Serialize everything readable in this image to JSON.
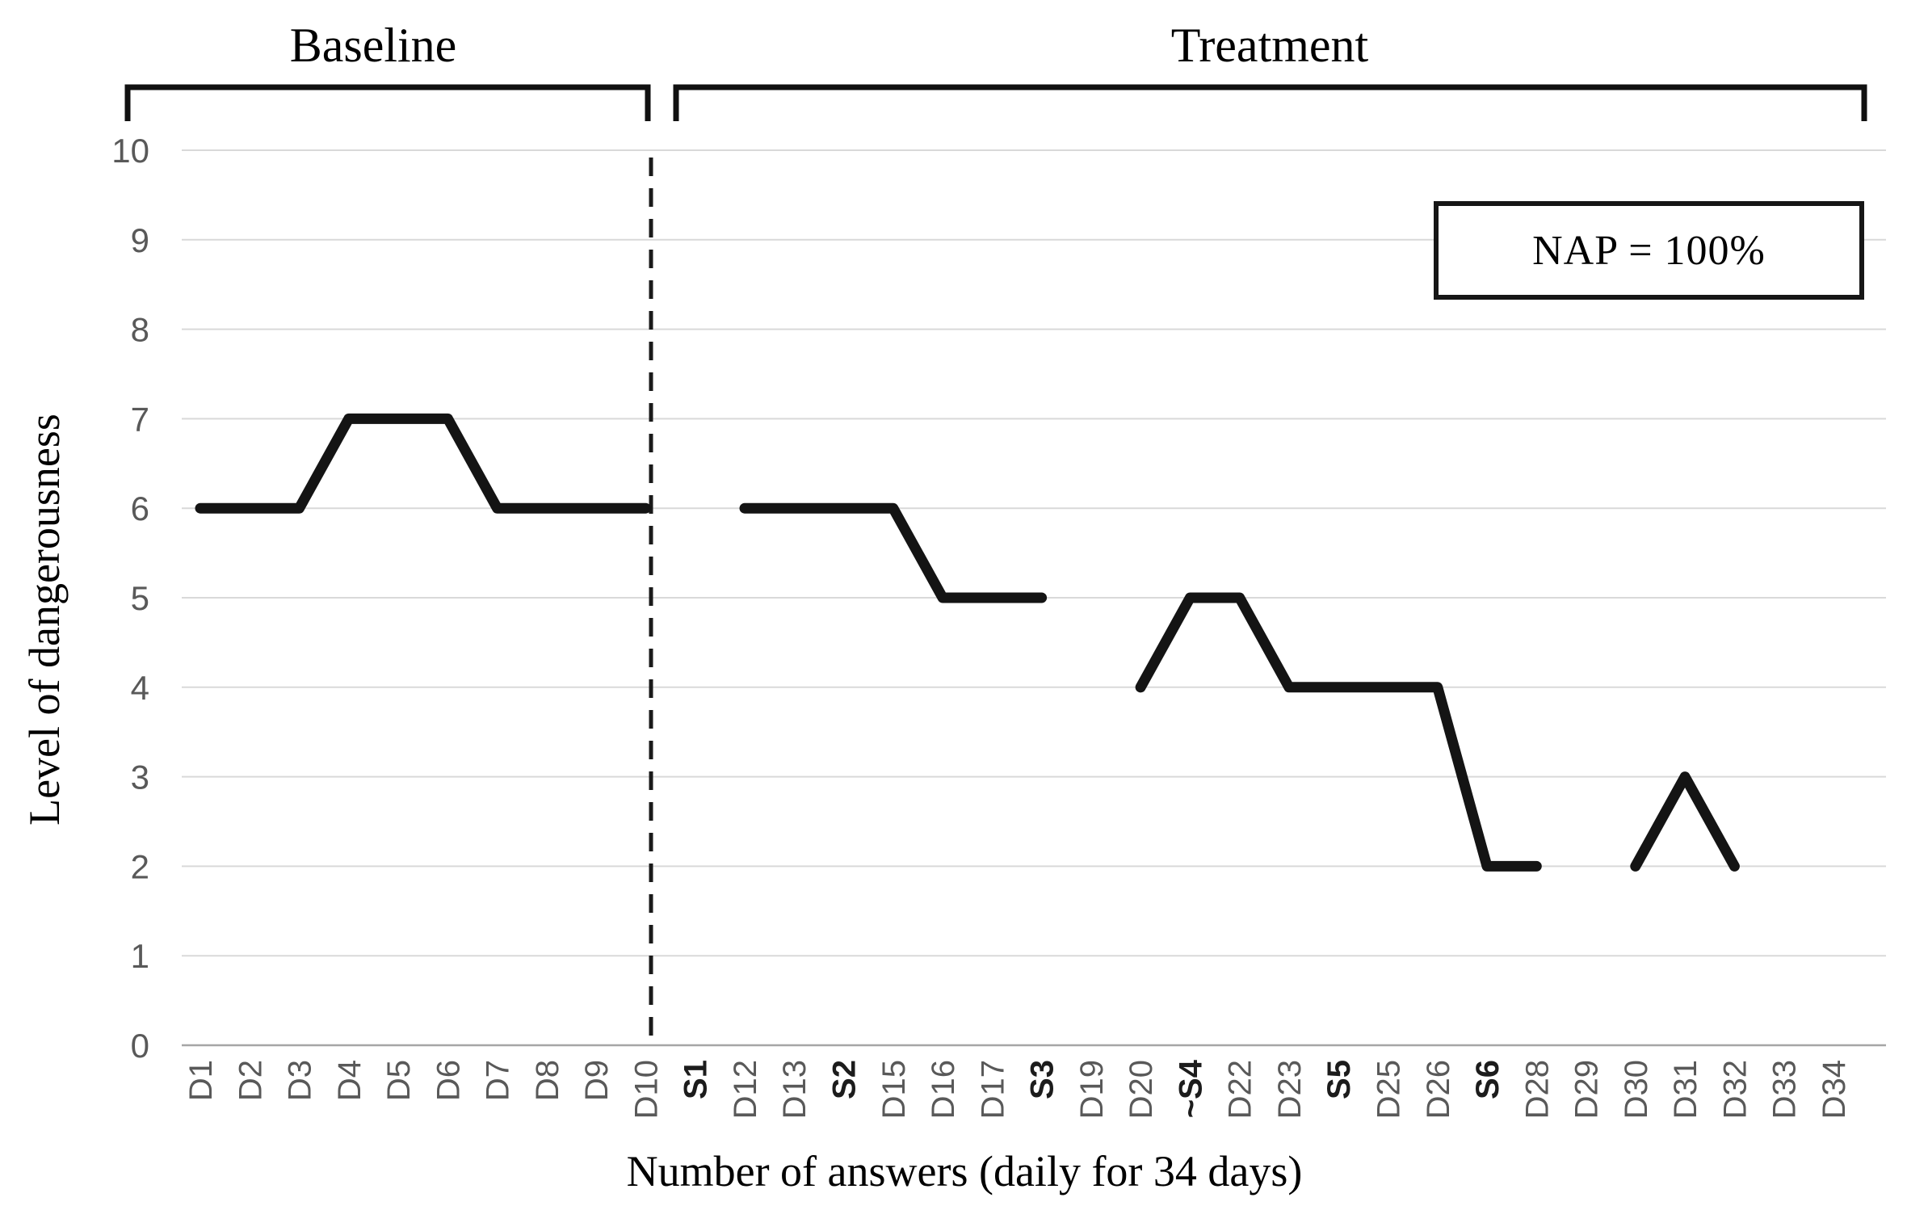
{
  "chart_data": {
    "type": "line",
    "title": "",
    "xlabel": "Number of answers (daily for 34 days)",
    "ylabel": "Level of dangerousness",
    "ylim": [
      0,
      10
    ],
    "ytick_step": 1,
    "grid": true,
    "legend": "none",
    "categories": [
      "D1",
      "D2",
      "D3",
      "D4",
      "D5",
      "D6",
      "D7",
      "D8",
      "D9",
      "D10",
      "S1",
      "D12",
      "D13",
      "S2",
      "D15",
      "D16",
      "D17",
      "S3",
      "D19",
      "D20",
      "~S4",
      "D22",
      "D23",
      "S5",
      "D25",
      "D26",
      "S6",
      "D28",
      "D29",
      "D30",
      "D31",
      "D32",
      "D33",
      "D34"
    ],
    "session_labels": [
      "S1",
      "S2",
      "S3",
      "~S4",
      "S5",
      "S6"
    ],
    "values": [
      6,
      6,
      6,
      7,
      7,
      7,
      6,
      6,
      6,
      6,
      null,
      6,
      6,
      6,
      6,
      5,
      5,
      5,
      null,
      4,
      5,
      5,
      4,
      4,
      4,
      4,
      2,
      2,
      null,
      2,
      3,
      2,
      null,
      null
    ],
    "phase_divider_after": "D10",
    "phases": [
      {
        "label": "Baseline",
        "from": "D1",
        "to": "D10"
      },
      {
        "label": "Treatment",
        "from": "S1",
        "to": "D34"
      }
    ],
    "annotation": {
      "text": "NAP = 100%"
    }
  },
  "colors": {
    "line": "#141414",
    "grid": "#d9d9d9",
    "zero_axis": "#a6a6a6",
    "tick_label": "#595959",
    "session_label": "#1c1c1c",
    "bracket": "#111111",
    "divider": "#1a1a1a",
    "text": "#000000"
  }
}
